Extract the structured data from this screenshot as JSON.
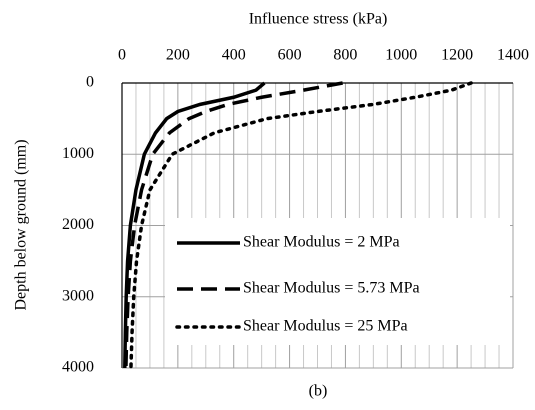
{
  "chart_data": {
    "type": "line",
    "xlabel": "Influence stress (kPa)",
    "ylabel": "Depth below ground (mm)",
    "caption": "(b)",
    "y": [
      0,
      100,
      200,
      300,
      400,
      500,
      700,
      1000,
      1500,
      2000,
      2500,
      3000,
      3500,
      4000
    ],
    "series": [
      {
        "name": "Shear Modulus = 2 MPa",
        "color": "#000000",
        "dash": "solid",
        "values": [
          510,
          480,
          400,
          280,
          200,
          160,
          120,
          80,
          50,
          30,
          20,
          15,
          12,
          10
        ]
      },
      {
        "name": "Shear Modulus = 5.73 MPa",
        "color": "#000000",
        "dash": "dashed",
        "values": [
          790,
          650,
          500,
          380,
          300,
          240,
          170,
          110,
          70,
          45,
          30,
          22,
          17,
          14
        ]
      },
      {
        "name": "Shear Modulus = 25 MPa",
        "color": "#000000",
        "dash": "dotted",
        "values": [
          1250,
          1180,
          1050,
          900,
          700,
          520,
          330,
          180,
          100,
          70,
          52,
          42,
          36,
          32
        ]
      }
    ],
    "xlim": [
      0,
      1400
    ],
    "xticks": [
      0,
      200,
      400,
      600,
      800,
      1000,
      1200,
      1400
    ],
    "xminorticks": [
      50,
      100,
      150,
      250,
      300,
      350,
      450,
      500,
      550,
      650,
      700,
      750,
      850,
      900,
      950,
      1050,
      1100,
      1150,
      1250,
      1300,
      1350
    ],
    "ylim": [
      0,
      4000
    ],
    "yticks": [
      0,
      1000,
      2000,
      3000,
      4000
    ],
    "y_inverted": true,
    "x_axis_position": "top",
    "grid": true,
    "legend": "lower right"
  }
}
